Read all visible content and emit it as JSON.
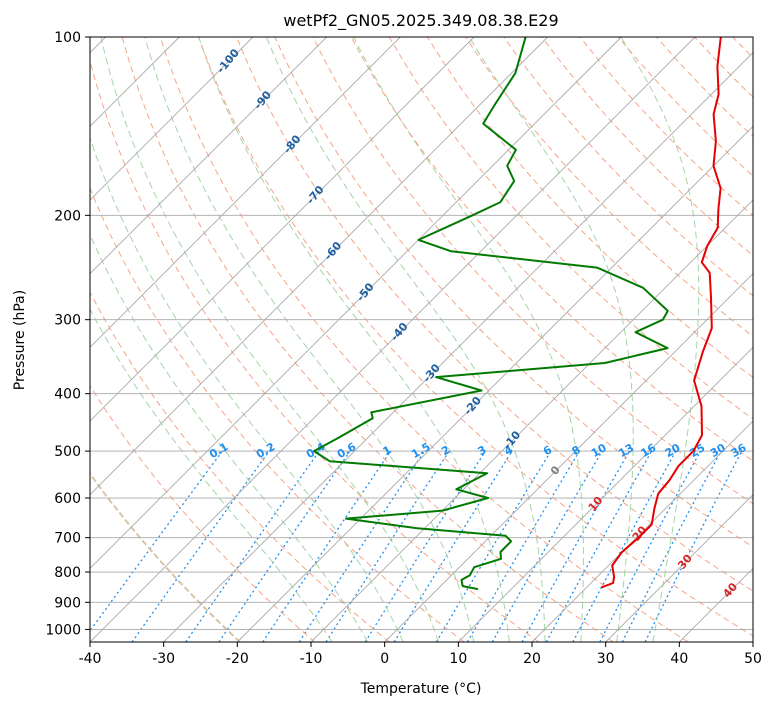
{
  "chart_data": {
    "type": "line",
    "title": "wetPf2_GN05.2025.349.08.38.E29",
    "xlabel": "Temperature (°C)",
    "ylabel": "Pressure (hPa)",
    "xlim": [
      -40,
      50
    ],
    "ylim": [
      1050,
      100
    ],
    "x_ticks": [
      "-40",
      "-30",
      "-20",
      "-10",
      "0",
      "10",
      "20",
      "30",
      "40",
      "50"
    ],
    "y_ticks": [
      "100",
      "200",
      "300",
      "400",
      "500",
      "600",
      "700",
      "800",
      "900",
      "1000"
    ],
    "skew": 45,
    "colors": {
      "temperature": "#e80000",
      "dewpoint": "#007a00",
      "isotherm": "#a9a9a9",
      "dry_adiabat": "#f4a58a",
      "moist_adiabat": "#a5d5a5",
      "mixing_ratio": "#1f8ff0",
      "freezing_level": "#d9c3a6",
      "label_dry": "#1f5f9f",
      "label_warm": "#d62728",
      "label_mix": "#1f8ff0"
    },
    "series": [
      {
        "name": "Temperature",
        "points": [
          [
            22,
            850
          ],
          [
            23,
            835
          ],
          [
            22.3,
            815
          ],
          [
            20.5,
            780
          ],
          [
            20,
            740
          ],
          [
            20.3,
            700
          ],
          [
            20.3,
            665
          ],
          [
            18.5,
            625
          ],
          [
            17,
            590
          ],
          [
            16.7,
            560
          ],
          [
            16,
            530
          ],
          [
            16,
            500
          ],
          [
            15,
            470
          ],
          [
            11,
            420
          ],
          [
            6.5,
            380
          ],
          [
            3.8,
            340
          ],
          [
            1.8,
            310
          ],
          [
            -2.5,
            275
          ],
          [
            -6,
            250
          ],
          [
            -8.5,
            240
          ],
          [
            -10,
            225
          ],
          [
            -11,
            210
          ],
          [
            -13.5,
            195
          ],
          [
            -16,
            180
          ],
          [
            -20,
            165
          ],
          [
            -23,
            150
          ],
          [
            -27,
            135
          ],
          [
            -29,
            125
          ],
          [
            -33,
            112
          ],
          [
            -36.5,
            100
          ]
        ]
      },
      {
        "name": "Dewpoint",
        "points": [
          [
            5.5,
            855
          ],
          [
            3,
            845
          ],
          [
            2,
            825
          ],
          [
            2.5,
            810
          ],
          [
            2,
            785
          ],
          [
            4.5,
            760
          ],
          [
            3.5,
            740
          ],
          [
            3.5,
            710
          ],
          [
            2,
            695
          ],
          [
            -11,
            675
          ],
          [
            -22,
            650
          ],
          [
            -10,
            630
          ],
          [
            -5.5,
            600
          ],
          [
            -11,
            580
          ],
          [
            -9,
            545
          ],
          [
            -32,
            520
          ],
          [
            -35.5,
            500
          ],
          [
            -34,
            475
          ],
          [
            -32,
            440
          ],
          [
            -33,
            430
          ],
          [
            -21,
            395
          ],
          [
            -29,
            375
          ],
          [
            -8,
            355
          ],
          [
            -1.5,
            335
          ],
          [
            -8,
            315
          ],
          [
            -6,
            300
          ],
          [
            -6.5,
            290
          ],
          [
            -13,
            265
          ],
          [
            -22,
            245
          ],
          [
            -44,
            230
          ],
          [
            -50,
            220
          ],
          [
            -46,
            200
          ],
          [
            -44,
            190
          ],
          [
            -45,
            175
          ],
          [
            -48,
            165
          ],
          [
            -49,
            155
          ],
          [
            -57,
            140
          ],
          [
            -58,
            130
          ],
          [
            -59.5,
            115
          ],
          [
            -63,
            100
          ]
        ]
      }
    ],
    "dry_adiabat_thetas_K": [
      260,
      270,
      280,
      290,
      300,
      310,
      320,
      330,
      340,
      350,
      360,
      370,
      380,
      390,
      400,
      410,
      420,
      430,
      440,
      450,
      460,
      470,
      480,
      490,
      500
    ],
    "moist_adiabat_thetaw_C": [
      -10,
      -5,
      0,
      5,
      10,
      15,
      20,
      25,
      30,
      35
    ],
    "mixing_ratio_lines": [
      0.1,
      0.2,
      0.4,
      0.6,
      1,
      1.5,
      2,
      3,
      4,
      6,
      8,
      10,
      13,
      16,
      20,
      25,
      30,
      36
    ],
    "mixing_ratio_labels": [
      "0.1",
      "0.2",
      "0.4",
      "0.6",
      "1",
      "1.5",
      "2",
      "3",
      "4",
      "6",
      "8",
      "10",
      "13",
      "16",
      "20",
      "25",
      "30",
      "36"
    ],
    "dry_adiabat_labels": [
      {
        "text": "-100",
        "t": -100,
        "p": 110
      },
      {
        "text": "-90",
        "t": -90,
        "p": 128
      },
      {
        "text": "-80",
        "t": -80,
        "p": 152
      },
      {
        "text": "-70",
        "t": -70,
        "p": 185
      },
      {
        "text": "-60",
        "t": -60,
        "p": 230
      },
      {
        "text": "-50",
        "t": -50,
        "p": 270
      },
      {
        "text": "-40",
        "t": -40,
        "p": 315
      },
      {
        "text": "-30",
        "t": -30,
        "p": 370
      },
      {
        "text": "-20",
        "t": -20,
        "p": 420
      },
      {
        "text": "-10",
        "t": -10,
        "p": 480
      }
    ],
    "warm_labels": [
      {
        "text": "0",
        "t": 0,
        "p": 540
      },
      {
        "text": "10",
        "t": 10,
        "p": 615
      },
      {
        "text": "20",
        "t": 20,
        "p": 690
      },
      {
        "text": "30",
        "t": 30,
        "p": 770
      },
      {
        "text": "40",
        "t": 40,
        "p": 860
      }
    ]
  }
}
